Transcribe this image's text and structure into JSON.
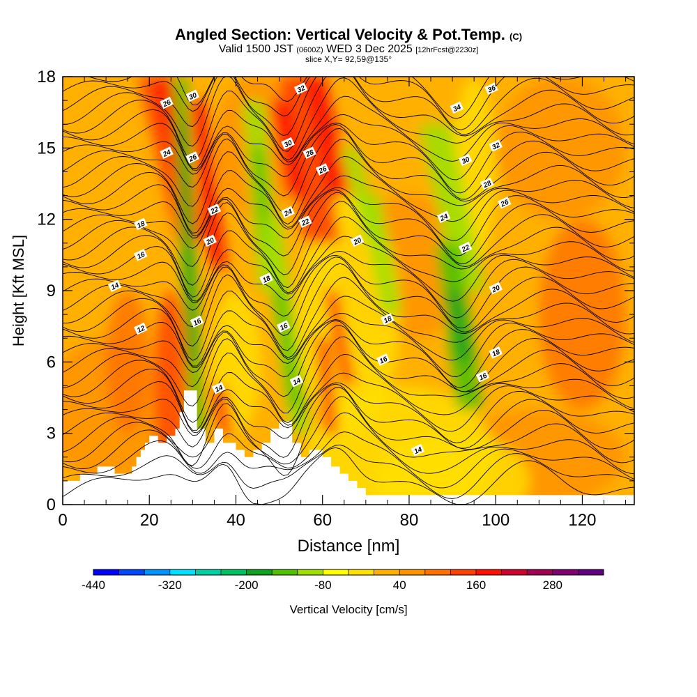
{
  "title": {
    "main": "Angled Section: Vertical Velocity & Pot.Temp.",
    "main_suffix": "(C)",
    "valid_prefix": "Valid 1500 JST",
    "valid_z": "(0600Z)",
    "valid_date": "WED 3 Dec 2025",
    "forecast": "[12hrFcst@2230z]",
    "slice": "slice X,Y= 92,59@135°"
  },
  "chart_data": {
    "type": "heatmap",
    "title": "Angled Section: Vertical Velocity & Pot.Temp. (C)",
    "xlabel": "Distance [nm]",
    "ylabel": "Height [Kft MSL]",
    "xlim": [
      0,
      132
    ],
    "ylim": [
      0,
      18
    ],
    "x_ticks": [
      0,
      20,
      40,
      60,
      80,
      100,
      120
    ],
    "y_ticks": [
      0,
      3,
      6,
      9,
      12,
      15,
      18
    ],
    "colorbar": {
      "label": "Vertical Velocity [cm/s]",
      "min": -440,
      "step": 40,
      "tick_labels": [
        "-440",
        "-320",
        "-200",
        "-80",
        "40",
        "160",
        "280"
      ],
      "tick_values": [
        -440,
        -320,
        -200,
        -80,
        40,
        160,
        280
      ],
      "colors": [
        "#0000ff",
        "#0047ff",
        "#0090ff",
        "#00e0ff",
        "#00d0a0",
        "#00c060",
        "#10a020",
        "#50c000",
        "#a0e000",
        "#ffff00",
        "#ffe000",
        "#ffb000",
        "#ff9000",
        "#ff7000",
        "#ff4000",
        "#ff1000",
        "#d00030",
        "#a00050",
        "#800070",
        "#600080"
      ]
    },
    "vertical_velocity_features": [
      {
        "type": "updraft",
        "x_start": 22,
        "x_end": 32,
        "z_start": 18,
        "z_end": 12,
        "peak_cm_s": 180
      },
      {
        "type": "downdraft",
        "x_start": 27,
        "x_end": 32,
        "z_start": 17,
        "z_end": 3,
        "peak_cm_s": -160
      },
      {
        "type": "downdraft",
        "x_start": 43,
        "x_end": 47,
        "z_start": 16,
        "z_end": 10,
        "peak_cm_s": -140
      },
      {
        "type": "updraft",
        "x_start": 52,
        "x_end": 66,
        "z_start": 18,
        "z_end": 12,
        "peak_cm_s": 180
      },
      {
        "type": "downdraft",
        "x_start": 50,
        "x_end": 55,
        "z_start": 12,
        "z_end": 3,
        "peak_cm_s": -140
      },
      {
        "type": "downdraft",
        "x_start": 88,
        "x_end": 97,
        "z_start": 16,
        "z_end": 4,
        "peak_cm_s": -200
      }
    ],
    "terrain_profile": {
      "x": [
        0,
        4,
        4,
        8,
        8,
        12,
        12,
        16,
        16,
        17,
        17,
        18,
        18,
        19,
        19,
        20,
        20,
        22,
        22,
        24,
        24,
        26,
        26,
        27,
        27,
        28,
        28,
        31,
        31,
        33,
        33,
        35,
        35,
        37,
        37,
        40,
        40,
        42,
        42,
        44,
        44,
        46,
        46,
        48,
        48,
        50,
        50,
        53,
        53,
        55,
        55,
        57,
        57,
        60,
        60,
        62,
        62,
        64,
        64,
        66,
        66,
        68,
        68,
        70,
        70,
        132
      ],
      "z": [
        1,
        1,
        1.3,
        1.3,
        1.6,
        1.6,
        1.3,
        1.3,
        1.6,
        1.6,
        2,
        2,
        2.3,
        2.3,
        2.6,
        2.6,
        2.9,
        2.9,
        2.6,
        2.6,
        2.9,
        2.9,
        3.2,
        3.2,
        3.9,
        3.9,
        4.8,
        4.8,
        3.2,
        3.2,
        2.6,
        2.6,
        3.2,
        3.2,
        2.6,
        2.6,
        2.3,
        2.3,
        2,
        2,
        2.3,
        2.3,
        2.6,
        2.6,
        3.2,
        3.2,
        3.5,
        3.5,
        2.6,
        2.6,
        2,
        2,
        2.3,
        2.3,
        2,
        2,
        1.6,
        1.6,
        1.3,
        1.3,
        1,
        1,
        0.7,
        0.7,
        0.4,
        0.4
      ]
    },
    "theta_contours_C": [
      {
        "label": "12",
        "value": 12
      },
      {
        "label": "14",
        "value": 14
      },
      {
        "label": "16",
        "value": 16
      },
      {
        "label": "18",
        "value": 18
      },
      {
        "label": "20",
        "value": 20
      },
      {
        "label": "22",
        "value": 22
      },
      {
        "label": "24",
        "value": 24
      },
      {
        "label": "26",
        "value": 26
      },
      {
        "label": "28",
        "value": 28
      },
      {
        "label": "30",
        "value": 30
      },
      {
        "label": "32",
        "value": 32
      },
      {
        "label": "34",
        "value": 34
      },
      {
        "label": "36",
        "value": 36
      }
    ],
    "contour_labels": [
      {
        "text": "12",
        "x": 18,
        "z": 7.4
      },
      {
        "text": "14",
        "x": 12,
        "z": 9.2
      },
      {
        "text": "16",
        "x": 18,
        "z": 10.5
      },
      {
        "text": "18",
        "x": 18,
        "z": 11.8
      },
      {
        "text": "24",
        "x": 24,
        "z": 14.8
      },
      {
        "text": "26",
        "x": 24,
        "z": 16.9
      },
      {
        "text": "30",
        "x": 30,
        "z": 17.2
      },
      {
        "text": "26",
        "x": 30,
        "z": 14.6
      },
      {
        "text": "22",
        "x": 35,
        "z": 12.4
      },
      {
        "text": "20",
        "x": 34,
        "z": 11.1
      },
      {
        "text": "16",
        "x": 31,
        "z": 7.7
      },
      {
        "text": "14",
        "x": 36,
        "z": 4.9
      },
      {
        "text": "32",
        "x": 55,
        "z": 17.5
      },
      {
        "text": "30",
        "x": 52,
        "z": 15.2
      },
      {
        "text": "28",
        "x": 57,
        "z": 14.8
      },
      {
        "text": "26",
        "x": 60,
        "z": 14.1
      },
      {
        "text": "24",
        "x": 52,
        "z": 12.3
      },
      {
        "text": "22",
        "x": 56,
        "z": 11.9
      },
      {
        "text": "20",
        "x": 68,
        "z": 11.1
      },
      {
        "text": "18",
        "x": 47,
        "z": 9.5
      },
      {
        "text": "16",
        "x": 51,
        "z": 7.5
      },
      {
        "text": "14",
        "x": 54,
        "z": 5.2
      },
      {
        "text": "18",
        "x": 75,
        "z": 7.8
      },
      {
        "text": "16",
        "x": 74,
        "z": 6.1
      },
      {
        "text": "14",
        "x": 82,
        "z": 2.3
      },
      {
        "text": "36",
        "x": 99,
        "z": 17.5
      },
      {
        "text": "34",
        "x": 91,
        "z": 16.7
      },
      {
        "text": "32",
        "x": 100,
        "z": 15.1
      },
      {
        "text": "30",
        "x": 93,
        "z": 14.5
      },
      {
        "text": "28",
        "x": 98,
        "z": 13.5
      },
      {
        "text": "26",
        "x": 102,
        "z": 12.7
      },
      {
        "text": "24",
        "x": 88,
        "z": 12.1
      },
      {
        "text": "22",
        "x": 93,
        "z": 10.8
      },
      {
        "text": "20",
        "x": 100,
        "z": 9.1
      },
      {
        "text": "18",
        "x": 100,
        "z": 6.4
      },
      {
        "text": "16",
        "x": 97,
        "z": 5.4
      }
    ]
  }
}
